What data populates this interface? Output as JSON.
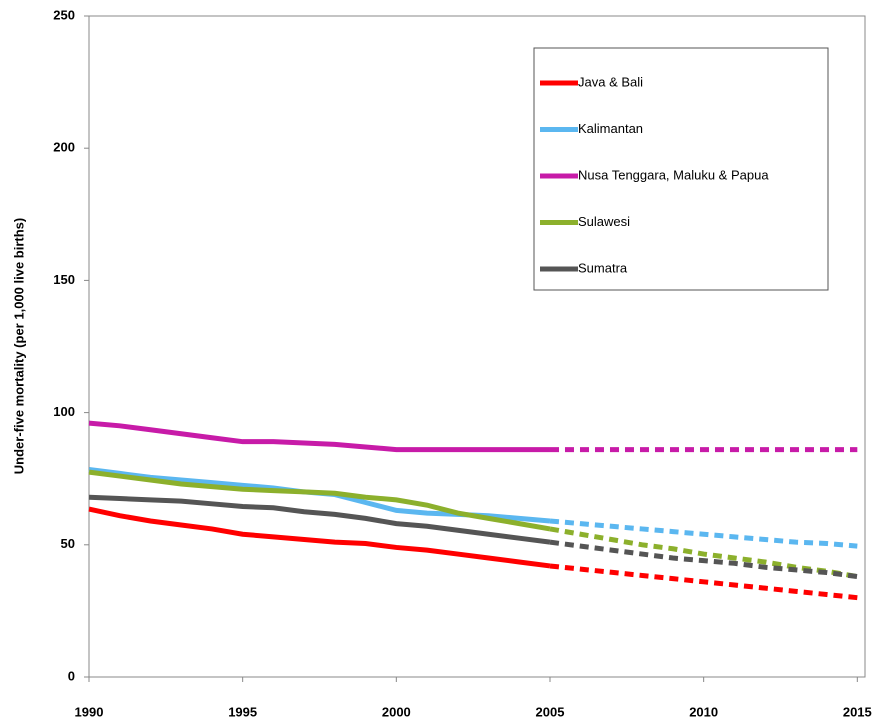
{
  "chart_data": {
    "type": "line",
    "y_label": "Under-five mortality (per 1,000 live births)",
    "x": [
      1990,
      1991,
      1992,
      1993,
      1994,
      1995,
      1996,
      1997,
      1998,
      1999,
      2000,
      2001,
      2002,
      2003,
      2004,
      2005,
      2006,
      2007,
      2008,
      2009,
      2010,
      2011,
      2012,
      2013,
      2014,
      2015
    ],
    "dashed_from": 2005,
    "xlim": [
      1990,
      2015.25
    ],
    "xticks": [
      1990,
      1995,
      2000,
      2005,
      2010,
      2015
    ],
    "ylim": [
      0,
      250
    ],
    "yticks": [
      0,
      50,
      100,
      150,
      200,
      250
    ],
    "legend": "upper right",
    "series": [
      {
        "name": "Java & Bali",
        "color": "#ff0000",
        "values": [
          63.5,
          61,
          59,
          57.5,
          56,
          54,
          53,
          52,
          51,
          50.5,
          49,
          48,
          46.5,
          45,
          43.5,
          42,
          40.8,
          39.6,
          38.4,
          37.2,
          36,
          34.8,
          33.6,
          32.4,
          31.2,
          30
        ]
      },
      {
        "name": "Kalimantan",
        "color": "#5bb7f0",
        "values": [
          78.5,
          77,
          75.5,
          74.5,
          73.5,
          72.5,
          71.5,
          70,
          69,
          66,
          63,
          62,
          61.5,
          61,
          60,
          59,
          58,
          57,
          56,
          55,
          54,
          53,
          52,
          51,
          50.5,
          49.5
        ]
      },
      {
        "name": "Nusa Tenggara, Maluku & Papua",
        "color": "#c71ba8",
        "values": [
          96,
          95,
          93.5,
          92,
          90.5,
          89,
          89,
          88.5,
          88,
          87,
          86,
          86,
          86,
          86,
          86,
          86,
          86,
          86,
          86,
          86,
          86,
          86,
          86,
          86,
          86,
          86
        ]
      },
      {
        "name": "Sulawesi",
        "color": "#8cb02c",
        "values": [
          77.5,
          76,
          74.5,
          73,
          72,
          71,
          70.5,
          70,
          69.5,
          68,
          67,
          65,
          62,
          60,
          58,
          56,
          54,
          52,
          50,
          48.5,
          46.5,
          45,
          43.5,
          41.5,
          40,
          38
        ]
      },
      {
        "name": "Sumatra",
        "color": "#555555",
        "values": [
          68,
          67.5,
          67,
          66.5,
          65.5,
          64.5,
          64,
          62.5,
          61.5,
          60,
          58,
          57,
          55.5,
          54,
          52.5,
          51,
          49.5,
          48,
          46.5,
          45,
          44,
          43,
          41.5,
          40.5,
          39.5,
          38
        ]
      }
    ]
  }
}
